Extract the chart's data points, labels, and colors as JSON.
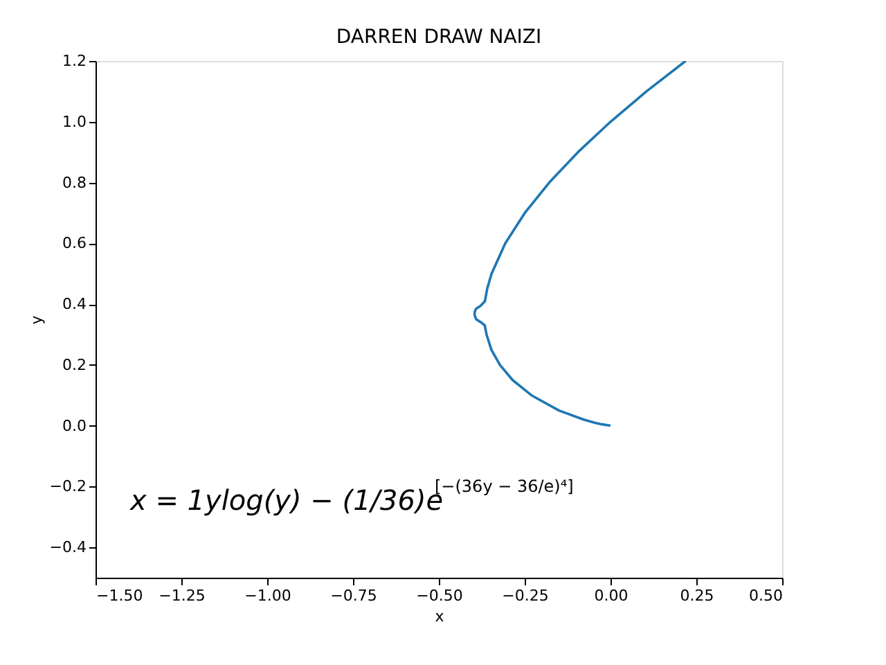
{
  "chart_data": {
    "type": "line",
    "title": "DARREN DRAW NAIZI",
    "xlabel": "x",
    "ylabel": "y",
    "series": [
      {
        "color": "#1f77b4",
        "x": [
          0,
          -0.0265,
          -0.046,
          -0.078,
          -0.15,
          -0.23,
          -0.285,
          -0.322,
          -0.347,
          -0.361,
          -0.3646,
          -0.366,
          -0.377,
          -0.391,
          -0.395,
          -0.396,
          -0.3954,
          -0.3915,
          -0.378,
          -0.3657,
          -0.3593,
          -0.3466,
          -0.3065,
          -0.2497,
          -0.1785,
          -0.0948,
          0,
          0.1048,
          0.2188
        ],
        "values": [
          0,
          0.005,
          0.01,
          0.02,
          0.05,
          0.1,
          0.15,
          0.2,
          0.25,
          0.3,
          0.32,
          0.33,
          0.34,
          0.35,
          0.36,
          0.368,
          0.375,
          0.385,
          0.395,
          0.41,
          0.45,
          0.5,
          0.6,
          0.7,
          0.8,
          0.9,
          1.0,
          1.1,
          1.2
        ]
      }
    ],
    "xlim": [
      -1.5,
      0.5
    ],
    "xticks": [
      {
        "value": -1.5,
        "label": "−1.50"
      },
      -1.25,
      {
        "value": -1.0,
        "label": "−1.00"
      },
      -0.75,
      {
        "value": -0.5,
        "label": "−0.50"
      },
      -0.25,
      {
        "value": 0,
        "label": "0.00"
      },
      0.25,
      {
        "value": 0.5,
        "label": "0.50"
      }
    ],
    "ylim": [
      -0.5,
      1.2
    ],
    "yticks": [
      -0.4,
      -0.2,
      {
        "value": 0,
        "label": "0.0"
      },
      0.2,
      0.4,
      0.6,
      0.8,
      {
        "value": 1,
        "label": "1.0"
      },
      1.2
    ],
    "grid": false,
    "annotations": [
      "x = 1ylog(y) − (1/36)e$^{[−(36y − 36/e)⁴]}$"
    ]
  }
}
